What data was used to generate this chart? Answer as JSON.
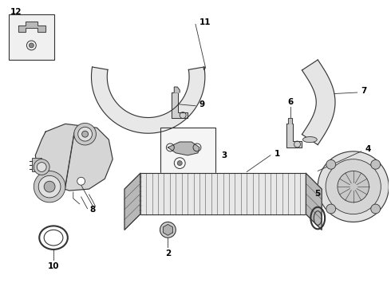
{
  "bg_color": "#ffffff",
  "line_color": "#333333",
  "label_color": "#000000",
  "fig_width": 4.9,
  "fig_height": 3.6,
  "dpi": 100
}
